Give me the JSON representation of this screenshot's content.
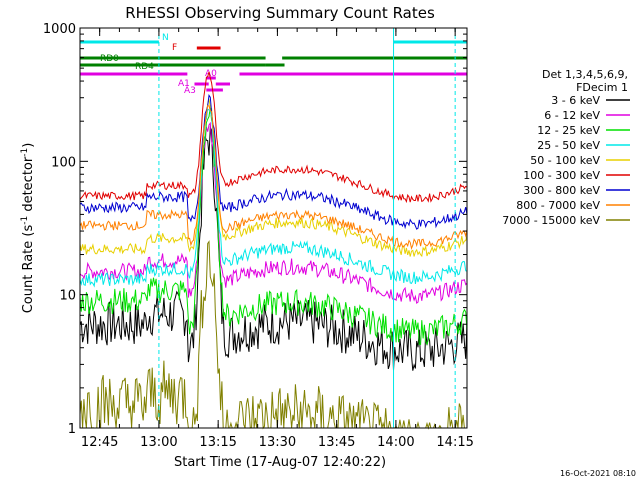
{
  "chart_data": {
    "type": "line",
    "title": "RHESSI Observing Summary Count Rates",
    "xlabel": "Start Time (17-Aug-07 12:40:22)",
    "ylabel_main": "Count Rate (s",
    "ylabel_sup1": "-1",
    "ylabel_mid": " detector",
    "ylabel_sup2": "-1",
    "ylabel_end": ")",
    "footer": "16-Oct-2021 08:10",
    "y_scale": "log",
    "ylim": [
      1,
      1000
    ],
    "xlim": [
      12.667,
      14.3
    ],
    "y_ticks": [
      {
        "v": 1,
        "label": "1"
      },
      {
        "v": 10,
        "label": "10"
      },
      {
        "v": 100,
        "label": "100"
      },
      {
        "v": 1000,
        "label": "1000"
      }
    ],
    "x_ticks": [
      {
        "v": 12.75,
        "label": "12:45"
      },
      {
        "v": 13.0,
        "label": "13:00"
      },
      {
        "v": 13.25,
        "label": "13:15"
      },
      {
        "v": 13.5,
        "label": "13:30"
      },
      {
        "v": 13.75,
        "label": "13:45"
      },
      {
        "v": 14.0,
        "label": "14:00"
      },
      {
        "v": 14.25,
        "label": "14:15"
      }
    ],
    "legend_header": [
      "Det 1,3,4,5,6,9,",
      "FDecim 1"
    ],
    "legend": [
      {
        "label": "3 - 6 keV",
        "color": "#000000"
      },
      {
        "label": "6 - 12 keV",
        "color": "#e000e0"
      },
      {
        "label": "12 - 25 keV",
        "color": "#00e000"
      },
      {
        "label": "25 - 50 keV",
        "color": "#00e8e8"
      },
      {
        "label": "50 - 100 keV",
        "color": "#e8d000"
      },
      {
        "label": "100 - 300 keV",
        "color": "#e00000"
      },
      {
        "label": "300 - 800 keV",
        "color": "#0000d0"
      },
      {
        "label": "800 - 7000 keV",
        "color": "#ff8000"
      },
      {
        "label": "7000 - 15000 keV",
        "color": "#808000"
      }
    ],
    "night_marks": [
      13.0,
      14.25
    ],
    "day_marks": [
      12.667,
      13.99
    ],
    "flag_labels": {
      "N": "N",
      "F": "F",
      "RD0": "RD0",
      "RD4": "RD4",
      "A0": "A0",
      "A1": "A1",
      "A3": "A3"
    },
    "flags": {
      "N": {
        "color": "#00e8e8",
        "segments": [
          [
            12.667,
            13.0
          ],
          [
            13.99,
            14.3
          ]
        ]
      },
      "F": {
        "color": "#e00000",
        "segments": [
          [
            13.16,
            13.26
          ]
        ]
      },
      "RD0": {
        "color": "#008000",
        "segments": [
          [
            12.667,
            13.45
          ],
          [
            13.52,
            14.3
          ]
        ]
      },
      "RD4": {
        "color": "#008000",
        "segments": [
          [
            12.667,
            13.45
          ],
          [
            13.45,
            13.53
          ]
        ]
      },
      "A0": {
        "color": "#e000e0",
        "segments": [
          [
            13.2,
            13.24
          ]
        ]
      },
      "A1": {
        "color": "#e000e0",
        "segments": [
          [
            13.15,
            13.21
          ],
          [
            13.24,
            13.3
          ]
        ]
      },
      "A3": {
        "color": "#e000e0",
        "segments": [
          [
            13.2,
            13.27
          ]
        ]
      },
      "main_attn": {
        "color": "#e000e0",
        "segments": [
          [
            12.667,
            13.12
          ],
          [
            13.34,
            14.3
          ]
        ]
      }
    },
    "series": [
      {
        "name": "3 - 6 keV",
        "color": "#000000",
        "base_start": 6,
        "base_mid": 5,
        "peak": 150,
        "noise": 0.35
      },
      {
        "name": "6 - 12 keV",
        "color": "#e000e0",
        "base_start": 15,
        "base_mid": 13,
        "peak": 190,
        "noise": 0.12
      },
      {
        "name": "12 - 25 keV",
        "color": "#00e000",
        "base_start": 9,
        "base_mid": 7,
        "peak": 220,
        "noise": 0.2
      },
      {
        "name": "25 - 50 keV",
        "color": "#00e8e8",
        "base_start": 13,
        "base_mid": 18,
        "peak": 240,
        "noise": 0.1
      },
      {
        "name": "50 - 100 keV",
        "color": "#e8d000",
        "base_start": 22,
        "base_mid": 28,
        "peak": 270,
        "noise": 0.08
      },
      {
        "name": "100 - 300 keV",
        "color": "#e00000",
        "base_start": 55,
        "base_mid": 70,
        "peak": 460,
        "noise": 0.06
      },
      {
        "name": "300 - 800 keV",
        "color": "#0000d0",
        "base_start": 45,
        "base_mid": 45,
        "peak": 290,
        "noise": 0.08
      },
      {
        "name": "800 - 7000 keV",
        "color": "#ff8000",
        "base_start": 33,
        "base_mid": 32,
        "peak": 260,
        "noise": 0.07
      },
      {
        "name": "7000 - 15000 keV",
        "color": "#808000",
        "base_start": 1.5,
        "base_mid": 1,
        "peak": 20,
        "noise": 0.5
      }
    ]
  }
}
